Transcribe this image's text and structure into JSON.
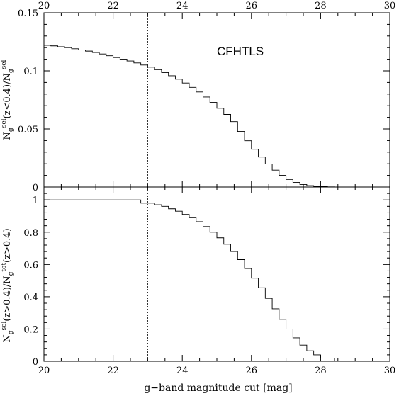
{
  "chart_data": [
    {
      "type": "line",
      "panel": "top",
      "annotation": "CFHTLS",
      "ylabel_main": "N",
      "ylabel_parts": [
        {
          "sub": "g",
          "sup": "sel",
          "text": "(z<0.4)/N"
        },
        {
          "sub": "g",
          "sup": "sel",
          "text": ""
        }
      ],
      "xlim": [
        20,
        30
      ],
      "ylim": [
        0,
        0.15
      ],
      "xticks": [
        "20",
        "22",
        "24",
        "26",
        "28",
        "30"
      ],
      "yticks": [
        "0",
        "0.05",
        "0.1",
        "0.15"
      ],
      "step_width": 0.2,
      "x": [
        20.0,
        20.2,
        20.4,
        20.6,
        20.8,
        21.0,
        21.2,
        21.4,
        21.6,
        21.8,
        22.0,
        22.2,
        22.4,
        22.6,
        22.8,
        23.0,
        23.2,
        23.4,
        23.6,
        23.8,
        24.0,
        24.2,
        24.4,
        24.6,
        24.8,
        25.0,
        25.2,
        25.4,
        25.6,
        25.8,
        26.0,
        26.2,
        26.4,
        26.6,
        26.8,
        27.0,
        27.2,
        27.4,
        27.6,
        27.8,
        28.0,
        28.2,
        28.4,
        28.6,
        28.8,
        29.0,
        29.2,
        29.4,
        29.6,
        29.8
      ],
      "values": [
        0.122,
        0.1215,
        0.1208,
        0.12,
        0.119,
        0.118,
        0.117,
        0.1158,
        0.1145,
        0.113,
        0.1115,
        0.11,
        0.1085,
        0.1068,
        0.105,
        0.1032,
        0.101,
        0.0985,
        0.0958,
        0.0928,
        0.0895,
        0.0858,
        0.0818,
        0.0775,
        0.0728,
        0.0678,
        0.0625,
        0.0563,
        0.0478,
        0.0398,
        0.0325,
        0.0258,
        0.0198,
        0.0145,
        0.01,
        0.0065,
        0.004,
        0.0022,
        0.0012,
        0.0006,
        0.0003,
        0.0001,
        0.0,
        0.0,
        0.0,
        0.0,
        0.0,
        0.0,
        0.0,
        0.0
      ],
      "vline_x": 23
    },
    {
      "type": "line",
      "panel": "bottom",
      "xlabel": "g−band magnitude cut [mag]",
      "ylabel_main": "N",
      "ylabel_parts": [
        {
          "sub": "g",
          "sup": "sel",
          "text": "(z>0.4)/N"
        },
        {
          "sub": "g",
          "sup": "tot",
          "text": "(z>0.4)"
        }
      ],
      "xlim": [
        20,
        30
      ],
      "ylim": [
        0,
        1.08
      ],
      "xticks": [
        "20",
        "22",
        "24",
        "26",
        "28",
        "30"
      ],
      "yticks": [
        "0",
        "0.2",
        "0.4",
        "0.6",
        "0.8",
        "1"
      ],
      "step_width": 0.2,
      "x": [
        20.0,
        20.2,
        20.4,
        20.6,
        20.8,
        21.0,
        21.2,
        21.4,
        21.6,
        21.8,
        22.0,
        22.2,
        22.4,
        22.6,
        22.8,
        23.0,
        23.2,
        23.4,
        23.6,
        23.8,
        24.0,
        24.2,
        24.4,
        24.6,
        24.8,
        25.0,
        25.2,
        25.4,
        25.6,
        25.8,
        26.0,
        26.2,
        26.4,
        26.6,
        26.8,
        27.0,
        27.2,
        27.4,
        27.6,
        27.8,
        28.0,
        28.2,
        28.4
      ],
      "values": [
        1.0,
        1.0,
        1.0,
        1.0,
        1.0,
        1.0,
        1.0,
        1.0,
        1.0,
        1.0,
        1.0,
        1.0,
        1.0,
        1.0,
        0.98,
        0.98,
        0.97,
        0.96,
        0.945,
        0.93,
        0.91,
        0.89,
        0.865,
        0.835,
        0.8,
        0.765,
        0.725,
        0.68,
        0.63,
        0.575,
        0.515,
        0.455,
        0.39,
        0.325,
        0.26,
        0.2,
        0.145,
        0.1,
        0.065,
        0.04,
        0.02,
        0.02,
        0.0
      ],
      "vline_x": 23
    }
  ]
}
